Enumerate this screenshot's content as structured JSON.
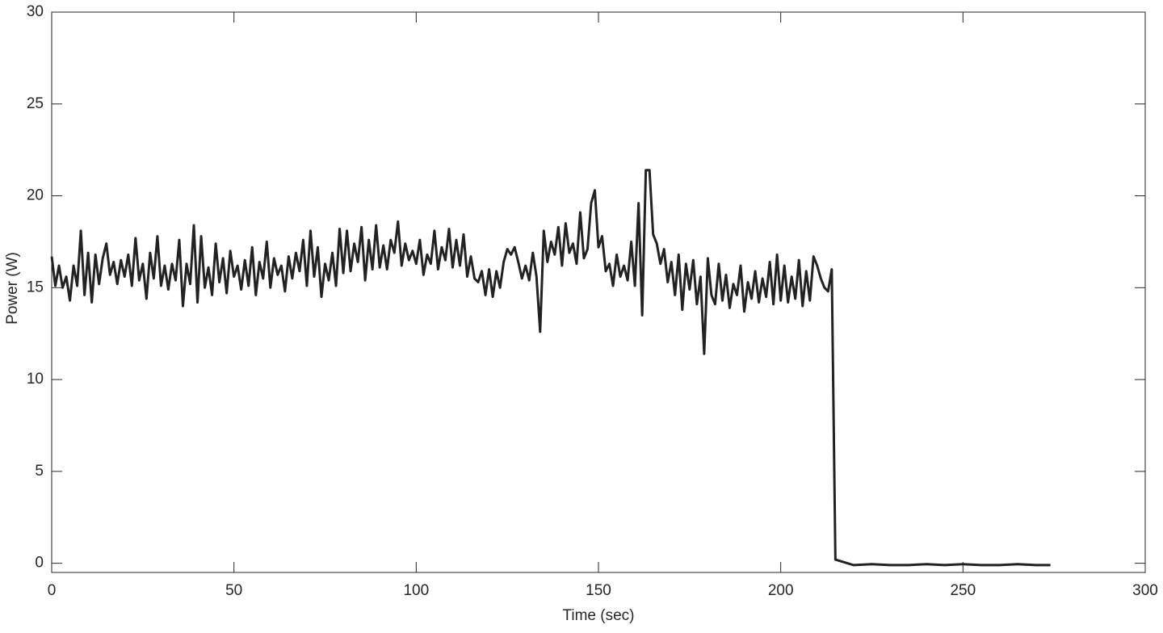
{
  "chart_data": {
    "type": "line",
    "xlabel": "Time (sec)",
    "ylabel": "Power (W)",
    "xlim": [
      0,
      300
    ],
    "xticks": [
      0,
      50,
      100,
      150,
      200,
      250,
      300
    ],
    "ylim": [
      -0.5,
      30
    ],
    "yticks": [
      0,
      5,
      10,
      15,
      20,
      25,
      30
    ],
    "grid": false,
    "x": [
      0,
      1,
      2,
      3,
      4,
      5,
      6,
      7,
      8,
      9,
      10,
      11,
      12,
      13,
      14,
      15,
      16,
      17,
      18,
      19,
      20,
      21,
      22,
      23,
      24,
      25,
      26,
      27,
      28,
      29,
      30,
      31,
      32,
      33,
      34,
      35,
      36,
      37,
      38,
      39,
      40,
      41,
      42,
      43,
      44,
      45,
      46,
      47,
      48,
      49,
      50,
      51,
      52,
      53,
      54,
      55,
      56,
      57,
      58,
      59,
      60,
      61,
      62,
      63,
      64,
      65,
      66,
      67,
      68,
      69,
      70,
      71,
      72,
      73,
      74,
      75,
      76,
      77,
      78,
      79,
      80,
      81,
      82,
      83,
      84,
      85,
      86,
      87,
      88,
      89,
      90,
      91,
      92,
      93,
      94,
      95,
      96,
      97,
      98,
      99,
      100,
      101,
      102,
      103,
      104,
      105,
      106,
      107,
      108,
      109,
      110,
      111,
      112,
      113,
      114,
      115,
      116,
      117,
      118,
      119,
      120,
      121,
      122,
      123,
      124,
      125,
      126,
      127,
      128,
      129,
      130,
      131,
      132,
      133,
      134,
      135,
      136,
      137,
      138,
      139,
      140,
      141,
      142,
      143,
      144,
      145,
      146,
      147,
      148,
      149,
      150,
      151,
      152,
      153,
      154,
      155,
      156,
      157,
      158,
      159,
      160,
      161,
      162,
      163,
      164,
      165,
      166,
      167,
      168,
      169,
      170,
      171,
      172,
      173,
      174,
      175,
      176,
      177,
      178,
      179,
      180,
      181,
      182,
      183,
      184,
      185,
      186,
      187,
      188,
      189,
      190,
      191,
      192,
      193,
      194,
      195,
      196,
      197,
      198,
      199,
      200,
      201,
      202,
      203,
      204,
      205,
      206,
      207,
      208,
      209,
      210,
      211,
      212,
      213,
      214,
      215,
      220,
      225,
      230,
      235,
      240,
      245,
      250,
      255,
      260,
      265,
      270,
      274
    ],
    "series": [
      {
        "color": "#222222",
        "values": [
          16.7,
          15.1,
          16.2,
          15.0,
          15.6,
          14.3,
          16.2,
          15.1,
          18.1,
          14.6,
          16.9,
          14.2,
          16.8,
          15.2,
          16.6,
          17.4,
          15.7,
          16.4,
          15.2,
          16.5,
          15.6,
          16.8,
          15.1,
          17.7,
          15.4,
          16.3,
          14.4,
          16.9,
          15.5,
          17.8,
          15.1,
          16.2,
          14.9,
          16.3,
          15.4,
          17.6,
          14.0,
          16.3,
          15.2,
          18.4,
          14.2,
          17.8,
          15.0,
          16.1,
          14.6,
          17.4,
          15.3,
          16.6,
          14.7,
          17.0,
          15.6,
          16.2,
          14.9,
          16.5,
          15.1,
          17.2,
          14.6,
          16.4,
          15.5,
          17.5,
          15.0,
          16.6,
          15.7,
          16.2,
          14.8,
          16.7,
          15.5,
          16.9,
          15.9,
          17.6,
          15.1,
          18.1,
          15.6,
          17.2,
          14.5,
          16.3,
          15.4,
          16.9,
          15.1,
          18.2,
          15.8,
          18.1,
          15.9,
          17.4,
          16.4,
          18.3,
          15.4,
          17.6,
          16.0,
          18.4,
          16.1,
          17.3,
          16.0,
          17.6,
          16.9,
          18.6,
          16.2,
          17.4,
          16.5,
          17.0,
          16.3,
          17.6,
          15.7,
          16.8,
          16.3,
          18.1,
          16.0,
          17.2,
          16.5,
          18.2,
          16.1,
          17.6,
          16.2,
          17.9,
          15.6,
          16.7,
          15.5,
          15.3,
          15.9,
          14.6,
          16.0,
          14.5,
          15.9,
          15.0,
          16.4,
          17.1,
          16.8,
          17.2,
          16.4,
          15.5,
          16.2,
          15.4,
          16.9,
          15.6,
          12.6,
          18.1,
          16.4,
          17.5,
          16.8,
          18.3,
          16.2,
          18.5,
          16.9,
          17.4,
          16.3,
          19.1,
          16.6,
          17.1,
          19.6,
          20.3,
          17.2,
          17.8,
          15.9,
          16.3,
          15.1,
          16.8,
          15.6,
          16.2,
          15.4,
          17.5,
          15.1,
          19.6,
          13.5,
          21.4,
          21.4,
          17.9,
          17.4,
          16.3,
          17.1,
          15.3,
          16.4,
          14.6,
          16.8,
          13.8,
          16.3,
          14.9,
          16.5,
          14.1,
          15.6,
          11.4,
          16.6,
          14.6,
          14.1,
          16.3,
          14.3,
          15.7,
          13.9,
          15.2,
          14.6,
          16.2,
          13.7,
          15.3,
          14.4,
          15.9,
          14.2,
          15.5,
          14.5,
          16.4,
          14.1,
          16.8,
          14.3,
          16.2,
          14.2,
          15.6,
          14.4,
          16.5,
          14.0,
          15.9,
          14.3,
          16.7,
          16.2,
          15.5,
          15.0,
          14.8,
          16.0,
          0.2,
          -0.1,
          -0.05,
          -0.1,
          -0.1,
          -0.05,
          -0.1,
          -0.05,
          -0.1,
          -0.1,
          -0.05,
          -0.1,
          -0.1
        ]
      }
    ]
  }
}
